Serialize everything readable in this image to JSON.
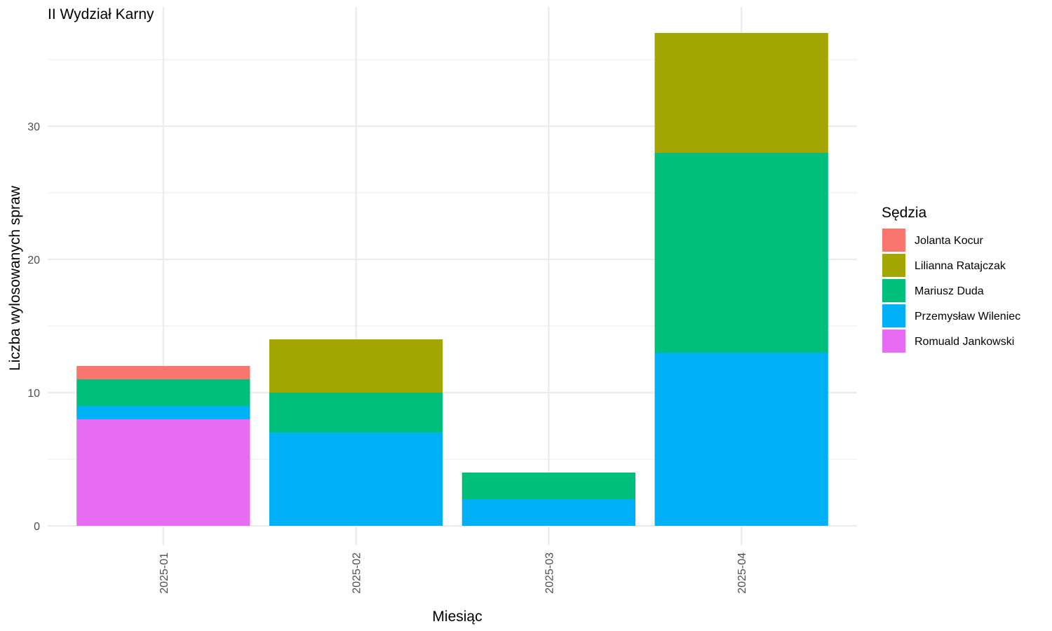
{
  "chart_data": {
    "type": "bar",
    "stacked": true,
    "title": "II Wydział Karny",
    "xlabel": "Miesiąc",
    "ylabel": "Liczba wylosowanych spraw",
    "categories": [
      "2025-01",
      "2025-02",
      "2025-03",
      "2025-04"
    ],
    "ylim": [
      0,
      37
    ],
    "yticks": [
      0,
      10,
      20,
      30
    ],
    "grid": true,
    "legend": {
      "title": "Sędzia",
      "position": "right"
    },
    "series": [
      {
        "name": "Jolanta Kocur",
        "color": "#F8766D",
        "values": [
          1,
          0,
          0,
          0
        ]
      },
      {
        "name": "Lilianna Ratajczak",
        "color": "#A3A500",
        "values": [
          0,
          4,
          0,
          9
        ]
      },
      {
        "name": "Mariusz Duda",
        "color": "#00BF7D",
        "values": [
          2,
          3,
          2,
          15
        ]
      },
      {
        "name": "Przemysław Wileniec",
        "color": "#00B0F6",
        "values": [
          1,
          7,
          2,
          13
        ]
      },
      {
        "name": "Romuald Jankowski",
        "color": "#E76BF3",
        "values": [
          8,
          0,
          0,
          0
        ]
      }
    ]
  }
}
